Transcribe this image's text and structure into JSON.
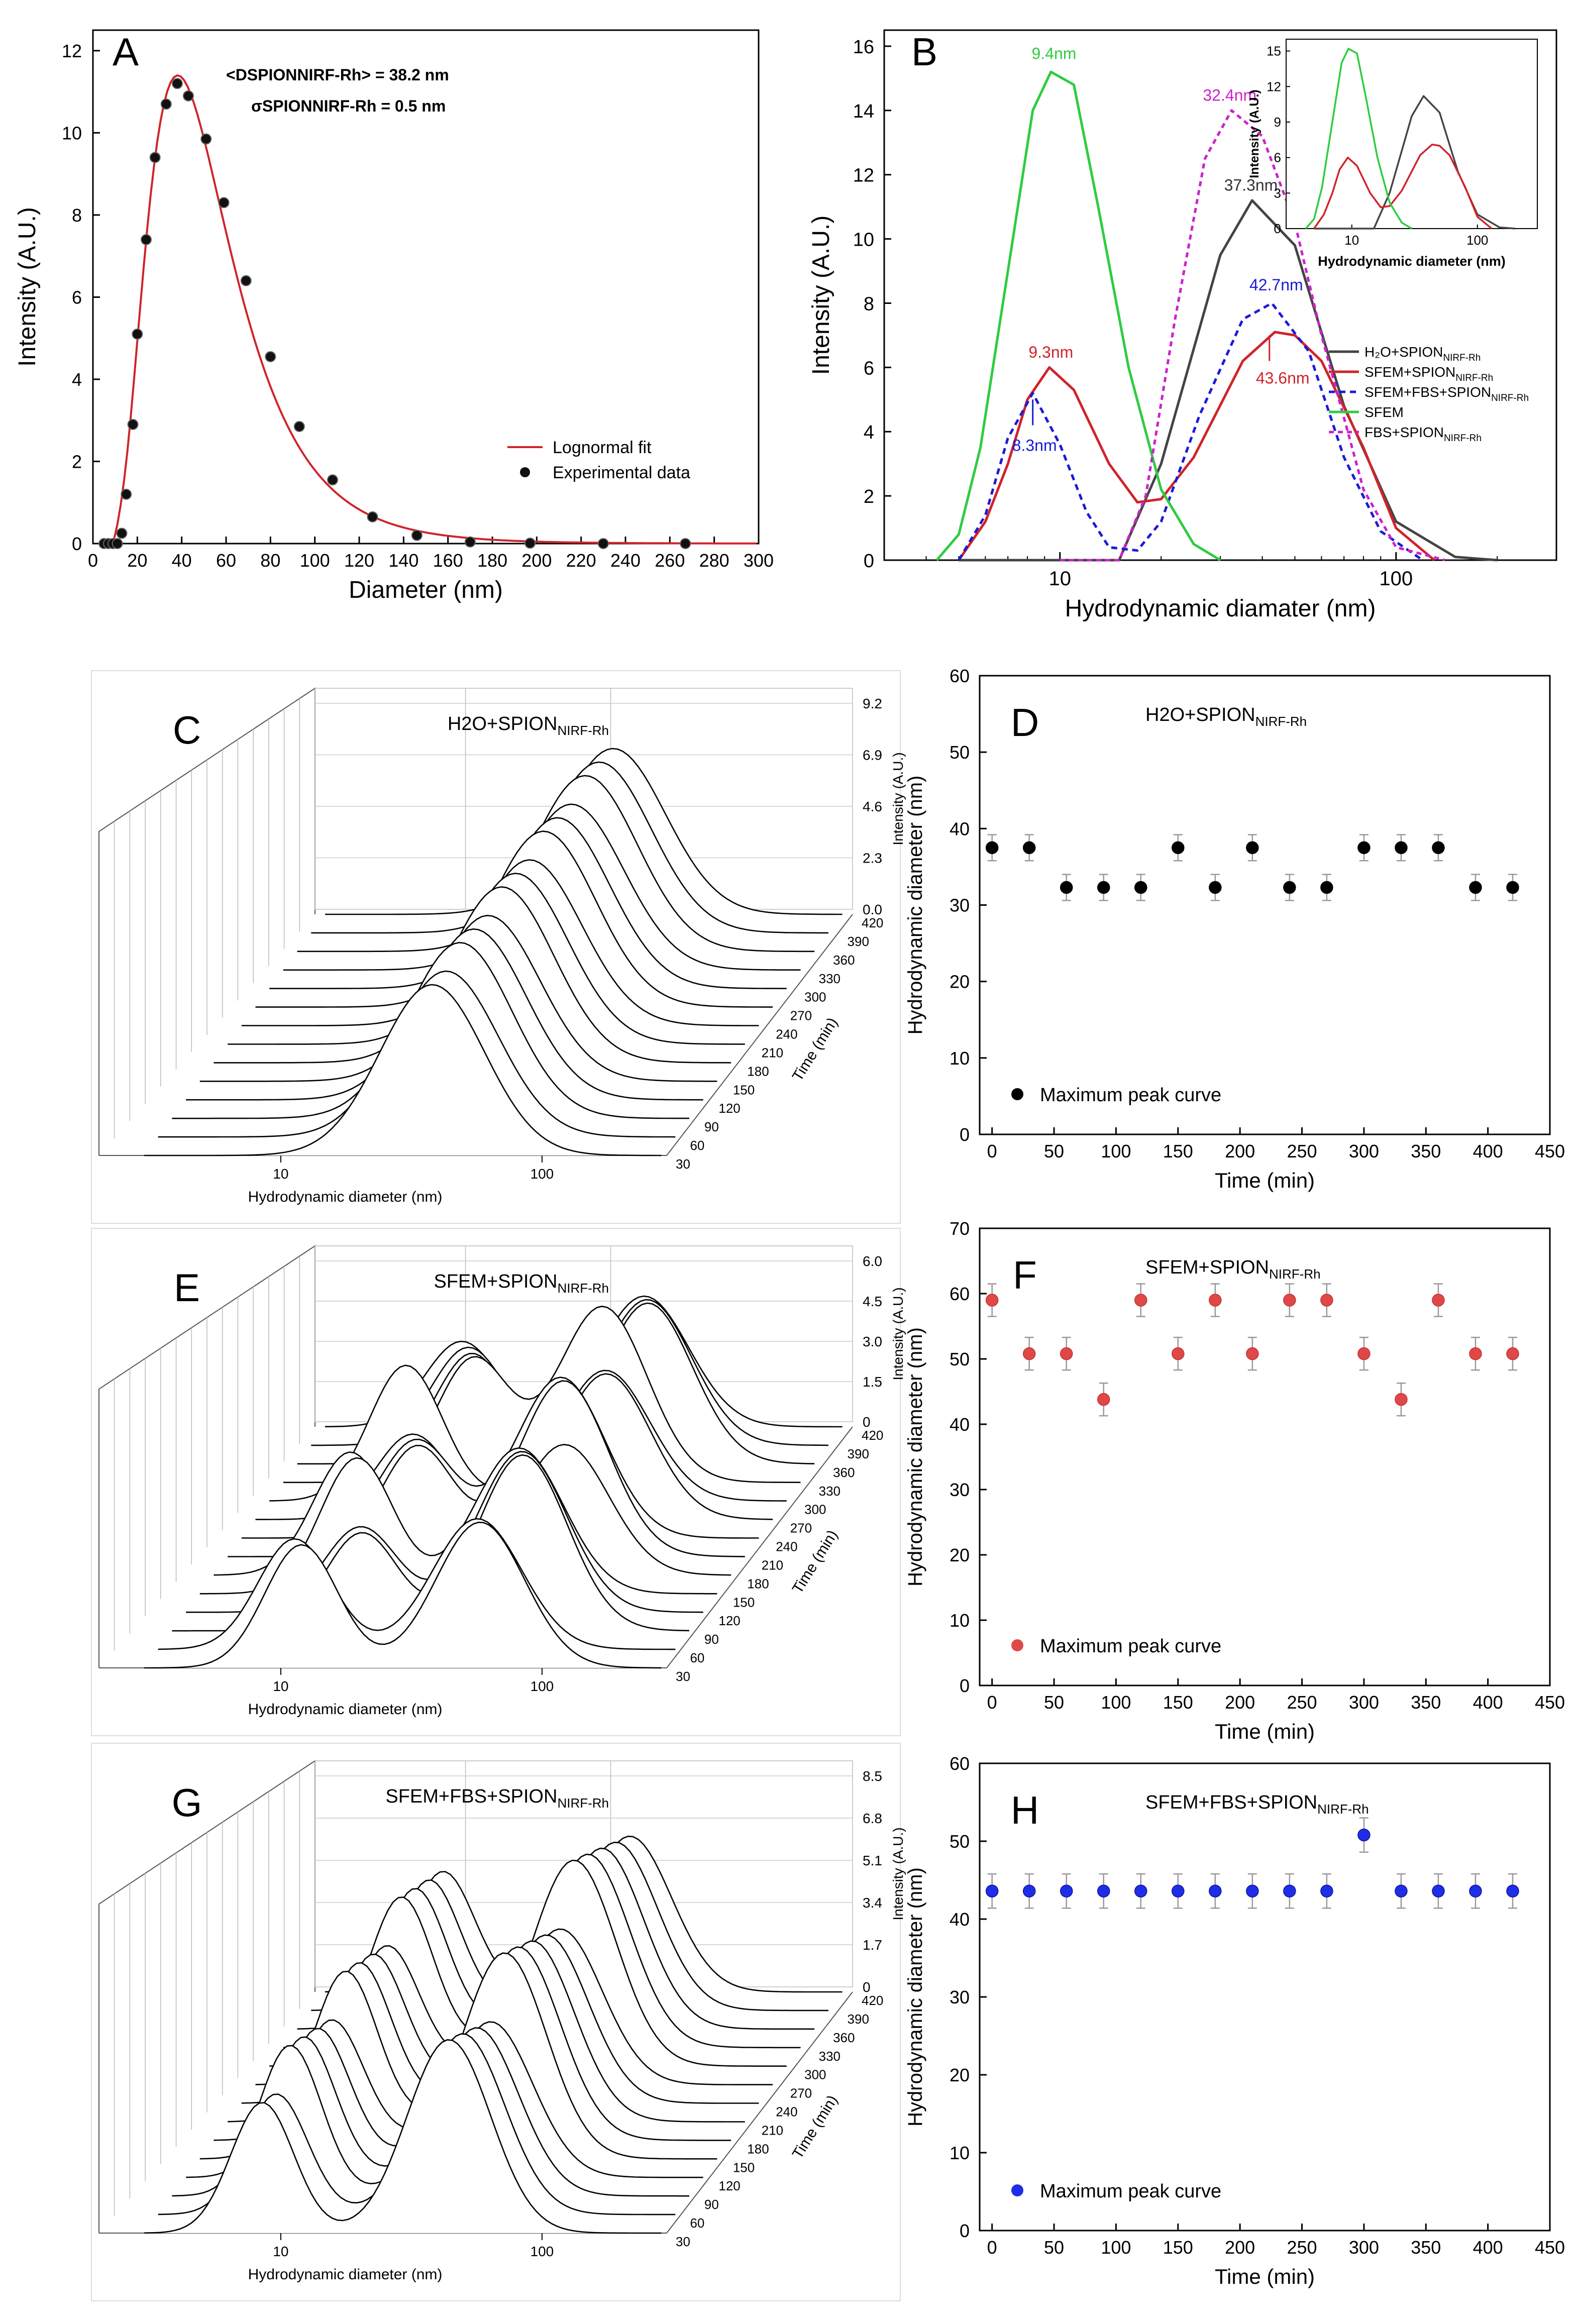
{
  "colors": {
    "red": "#d0232a",
    "black": "#000000",
    "dark": "#444444",
    "blue": "#1a1ad8",
    "green": "#2ecc40",
    "magenta": "#cc22cc",
    "grid": "#c8c8c8",
    "marker_red": "#e04848",
    "marker_blue": "#1e2ee6"
  },
  "chart_data": [
    {
      "panel": "A",
      "type": "scatter",
      "xlabel": "Diameter (nm)",
      "ylabel": "Intensity (A.U.)",
      "xlim": [
        0,
        300
      ],
      "ylim": [
        0,
        12.5
      ],
      "xticks": [
        "0",
        "20",
        "40",
        "60",
        "80",
        "100",
        "120",
        "140",
        "160",
        "180",
        "200",
        "220",
        "240",
        "260",
        "280",
        "300"
      ],
      "yticks": [
        "0",
        "2",
        "4",
        "6",
        "8",
        "10",
        "12"
      ],
      "annotation_mean": "<DSPIONNIRF-Rh> = 38.2 nm",
      "annotation_sigma": "σSPIONNIRF-Rh = 0.5  nm",
      "legend": [
        "Lognormal fit",
        "Experimental data"
      ],
      "experimental": {
        "x": [
          5,
          7,
          9,
          11,
          13,
          15,
          18,
          20,
          24,
          28,
          33,
          38,
          43,
          51,
          59,
          69,
          80,
          93,
          108,
          126,
          146,
          170,
          197,
          230,
          267
        ],
        "y": [
          0,
          0,
          0,
          0,
          0.25,
          1.2,
          2.9,
          5.1,
          7.4,
          9.4,
          10.7,
          11.2,
          10.9,
          9.85,
          8.3,
          6.4,
          4.55,
          2.85,
          1.55,
          0.65,
          0.2,
          0.04,
          0.01,
          0,
          0
        ]
      },
      "fit": {
        "type": "lognormal",
        "median": 38.2,
        "sigma": 0.5,
        "peak": 11.4
      }
    },
    {
      "panel": "B",
      "type": "line",
      "xlabel": "Hydrodynamic diamater (nm)",
      "ylabel": "Intensity (A.U.)",
      "xscale": "log",
      "xlim": [
        3,
        300
      ],
      "ylim": [
        0,
        16.5
      ],
      "xticks": [
        "10",
        "100"
      ],
      "yticks": [
        "0",
        "2",
        "4",
        "6",
        "8",
        "10",
        "12",
        "14",
        "16"
      ],
      "series": [
        {
          "name": "H2O+SPION NIRF-Rh",
          "x": [
            5,
            7,
            10,
            15,
            20,
            30,
            37.3,
            50,
            70,
            100,
            150,
            200
          ],
          "y": [
            0,
            0,
            0,
            0,
            3,
            9.5,
            11.2,
            9.8,
            4.8,
            1.2,
            0.1,
            0
          ]
        },
        {
          "name": "SFEM+SPION NIRF-Rh",
          "x": [
            5,
            6,
            7,
            8,
            9.3,
            11,
            14,
            17,
            20,
            25,
            35,
            43.6,
            50,
            60,
            80,
            100,
            130
          ],
          "y": [
            0,
            1.2,
            3,
            5,
            6,
            5.3,
            3,
            1.8,
            1.9,
            3.2,
            6.2,
            7.1,
            7,
            6.2,
            3.5,
            1,
            0
          ]
        },
        {
          "name": "SFEM+FBS+SPION NIRF-Rh",
          "x": [
            5,
            6,
            7,
            8.3,
            10,
            12,
            14,
            17,
            20,
            26,
            35,
            42.7,
            55,
            70,
            90,
            120
          ],
          "y": [
            0,
            1.4,
            3.8,
            5.2,
            3.6,
            1.5,
            0.4,
            0.3,
            1.2,
            4.5,
            7.5,
            8,
            6.5,
            3.2,
            0.9,
            0
          ]
        },
        {
          "name": "SFEM",
          "x": [
            4.3,
            5,
            5.8,
            7,
            8.3,
            9.4,
            11,
            13,
            16,
            20,
            25,
            30
          ],
          "y": [
            0,
            0.8,
            3.5,
            9,
            14,
            15.2,
            14.8,
            11,
            6,
            2.2,
            0.5,
            0
          ]
        },
        {
          "name": "FBS+SPION NIRF-Rh",
          "x": [
            10,
            15,
            18,
            22,
            27,
            32.4,
            40,
            50,
            60,
            80,
            100,
            140
          ],
          "y": [
            0,
            0,
            2,
            7.5,
            12.5,
            14,
            13.2,
            10.5,
            7,
            2.2,
            0.4,
            0
          ]
        }
      ],
      "peak_labels": [
        "9.4nm",
        "32.4nm",
        "37.3nm",
        "42.7nm",
        "9.3nm",
        "43.6nm",
        "8.3nm"
      ],
      "inset": {
        "xlabel": "Hydrodynamic diameter (nm)",
        "ylabel": "Intensity (A.U.)",
        "yticks": [
          "0",
          "3",
          "6",
          "9",
          "12",
          "15"
        ],
        "xticks": [
          "10",
          "100"
        ]
      }
    },
    {
      "panel": "C",
      "type": "line",
      "style": "waterfall-3d",
      "title": "H2O+SPION NIRF-Rh",
      "xlabel": "Hydrodynamic diameter (nm)",
      "ylabel": "Intensity (A.U.)",
      "zlabel": "Time (min)",
      "xticks": [
        "10",
        "100"
      ],
      "zticks": [
        "420",
        "390",
        "360",
        "330",
        "300",
        "270",
        "240",
        "210",
        "180",
        "150",
        "120",
        "90",
        "60",
        "30"
      ],
      "yticks": [
        "0.0",
        "2.3",
        "4.6",
        "6.9",
        "9.2"
      ]
    },
    {
      "panel": "D",
      "type": "scatter",
      "title": "H2O+SPION NIRF-Rh",
      "xlabel": "Time (min)",
      "ylabel": "Hydrodynamic diameter (nm)",
      "xlim": [
        -10,
        450
      ],
      "ylim": [
        0,
        60
      ],
      "xticks": [
        "0",
        "50",
        "100",
        "150",
        "200",
        "250",
        "300",
        "350",
        "400",
        "450"
      ],
      "yticks": [
        "0",
        "10",
        "20",
        "30",
        "40",
        "50",
        "60"
      ],
      "legend": "Maximum peak  curve",
      "x": [
        0,
        30,
        60,
        90,
        120,
        150,
        180,
        210,
        240,
        270,
        300,
        330,
        360,
        390,
        420
      ],
      "y": [
        37.5,
        37.5,
        32.3,
        32.3,
        32.3,
        37.5,
        32.3,
        37.5,
        32.3,
        32.3,
        37.5,
        37.5,
        37.5,
        32.3,
        32.3
      ],
      "err": 1.7
    },
    {
      "panel": "E",
      "type": "line",
      "style": "waterfall-3d",
      "title": "SFEM+SPION NIRF-Rh",
      "xlabel": "Hydrodynamic diameter (nm)",
      "ylabel": "Intensity (A.U.)",
      "zlabel": "Time (min)",
      "xticks": [
        "10",
        "100"
      ],
      "zticks": [
        "420",
        "390",
        "360",
        "330",
        "300",
        "270",
        "240",
        "210",
        "180",
        "150",
        "120",
        "90",
        "60",
        "30"
      ],
      "yticks": [
        "0",
        "1.5",
        "3.0",
        "4.5",
        "6.0"
      ]
    },
    {
      "panel": "F",
      "type": "scatter",
      "title": "SFEM+SPION NIRF-Rh",
      "xlabel": "Time (min)",
      "ylabel": "Hydrodynamic diameter (nm)",
      "xlim": [
        -10,
        450
      ],
      "ylim": [
        0,
        70
      ],
      "xticks": [
        "0",
        "50",
        "100",
        "150",
        "200",
        "250",
        "300",
        "350",
        "400",
        "450"
      ],
      "yticks": [
        "0",
        "10",
        "20",
        "30",
        "40",
        "50",
        "60",
        "70"
      ],
      "legend": "Maximum peak curve",
      "x": [
        0,
        30,
        60,
        90,
        120,
        150,
        180,
        210,
        240,
        270,
        300,
        330,
        360,
        390,
        420
      ],
      "y": [
        59,
        50.8,
        50.8,
        43.8,
        59,
        50.8,
        59,
        50.8,
        59,
        59,
        50.8,
        43.8,
        59,
        50.8,
        50.8
      ],
      "err": 2.5
    },
    {
      "panel": "G",
      "type": "line",
      "style": "waterfall-3d",
      "title": "SFEM+FBS+SPION NIRF-Rh",
      "xlabel": "Hydrodynamic diameter (nm)",
      "ylabel": "Intensity (A.U.)",
      "zlabel": "Time (min)",
      "xticks": [
        "10",
        "100"
      ],
      "zticks": [
        "420",
        "390",
        "360",
        "330",
        "300",
        "270",
        "240",
        "210",
        "180",
        "150",
        "120",
        "90",
        "60",
        "30"
      ],
      "yticks": [
        "0",
        "1.7",
        "3.4",
        "5.1",
        "6.8",
        "8.5"
      ]
    },
    {
      "panel": "H",
      "type": "scatter",
      "title": "SFEM+FBS+SPION NIRF-Rh",
      "xlabel": "Time (min)",
      "ylabel": "Hydrodynamic diameter (nm)",
      "xlim": [
        -10,
        450
      ],
      "ylim": [
        0,
        60
      ],
      "xticks": [
        "0",
        "50",
        "100",
        "150",
        "200",
        "250",
        "300",
        "350",
        "400",
        "450"
      ],
      "yticks": [
        "0",
        "10",
        "20",
        "30",
        "40",
        "50",
        "60"
      ],
      "legend": "Maximum peak curve",
      "x": [
        0,
        30,
        60,
        90,
        120,
        150,
        180,
        210,
        240,
        270,
        300,
        330,
        360,
        390,
        420
      ],
      "y": [
        43.6,
        43.6,
        43.6,
        43.6,
        43.6,
        43.6,
        43.6,
        43.6,
        43.6,
        43.6,
        50.8,
        43.6,
        43.6,
        43.6,
        43.6
      ],
      "err": 2.2
    }
  ],
  "panel_letters": [
    "A",
    "B",
    "C",
    "D",
    "E",
    "F",
    "G",
    "H"
  ]
}
